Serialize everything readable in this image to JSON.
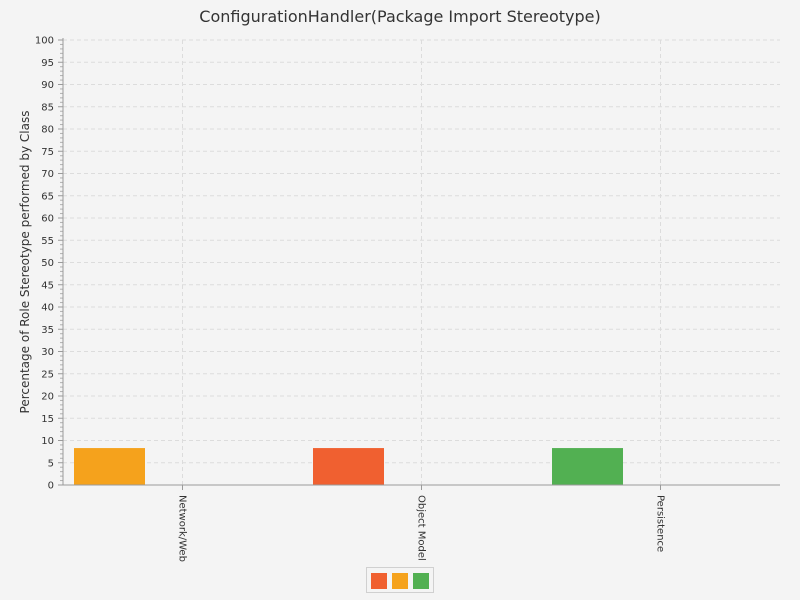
{
  "chart_data": {
    "type": "bar",
    "title": "ConfigurationHandler(Package Import Stereotype)",
    "ylabel": "Percentage of Role Stereotype performed by Class",
    "xlabel": "",
    "ylim": [
      0,
      100
    ],
    "y_major_step": 5,
    "y_minor_step": 1,
    "grid": true,
    "categories": [
      "Network/Web",
      "Object Model",
      "Persistence"
    ],
    "series": [
      {
        "color": "#f06030",
        "values": [
          0,
          8.3,
          0
        ]
      },
      {
        "color": "#f5a21c",
        "values": [
          8.3,
          0,
          0
        ]
      },
      {
        "color": "#52b052",
        "values": [
          0,
          0,
          8.3
        ]
      }
    ],
    "legend": {
      "position": "bottom-center"
    }
  }
}
